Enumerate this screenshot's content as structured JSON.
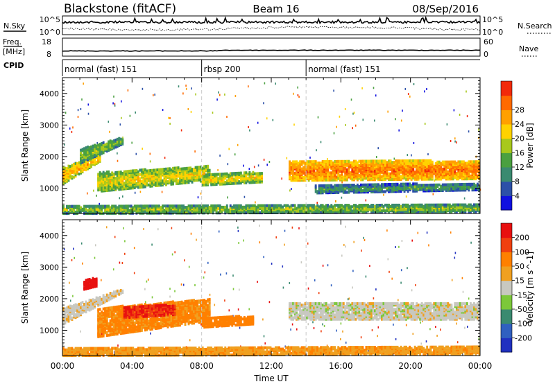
{
  "header": {
    "station": "Blackstone (fitACF)",
    "beam": "Beam 16",
    "date": "08/Sep/2016"
  },
  "top_panels": {
    "nsky_label": "N.Sky",
    "nsearch_label": "N.Search",
    "nsky_ticks": [
      "10^5",
      "10^0"
    ],
    "nsearch_ticks": [
      "10^5",
      "10^0"
    ],
    "freq_label_1": "Freq.",
    "freq_label_2": "[MHz]",
    "freq_ticks": [
      "18",
      "8"
    ],
    "nave_label": "Nave",
    "nave_ticks": [
      "60",
      "0"
    ],
    "cpid_label": "CPID",
    "cpid_segments": [
      {
        "label": "normal (fast) 151",
        "start_h": 0,
        "end_h": 8
      },
      {
        "label": "rbsp 200",
        "start_h": 8,
        "end_h": 14
      },
      {
        "label": "normal (fast) 151",
        "start_h": 14,
        "end_h": 24
      }
    ]
  },
  "chart_data": [
    {
      "type": "heatmap",
      "title": "",
      "xlabel": "Time UT",
      "ylabel": "Slant Range [km]",
      "xlim": [
        0,
        24
      ],
      "ylim": [
        200,
        4500
      ],
      "x_ticks": [
        "00:00",
        "04:00",
        "08:00",
        "12:00",
        "16:00",
        "20:00",
        "00:00"
      ],
      "y_ticks": [
        "1000",
        "2000",
        "3000",
        "4000"
      ],
      "colorbar": {
        "label": "Power [dB]",
        "ticks": [
          "4",
          "8",
          "12",
          "16",
          "20",
          "24",
          "28"
        ],
        "range": [
          0,
          32
        ],
        "colors": [
          "#1010e0",
          "#2c50a8",
          "#3a8a70",
          "#4aa040",
          "#a8c81c",
          "#ffd200",
          "#ffa000",
          "#ff6a00",
          "#f22a0a"
        ]
      },
      "features": [
        {
          "t0": 0.0,
          "t1": 2.2,
          "r0": 1150,
          "r1": 1650,
          "drift_to": 1850,
          "level": 5
        },
        {
          "t0": 1.0,
          "t1": 3.5,
          "r0": 1800,
          "r1": 2250,
          "drift_to": 2400,
          "level": 3
        },
        {
          "t0": 2.0,
          "t1": 8.5,
          "r0": 900,
          "r1": 1500,
          "drift_to": 1250,
          "level": 4
        },
        {
          "t0": 8.0,
          "t1": 11.5,
          "r0": 1100,
          "r1": 1450,
          "drift_to": 1200,
          "level": 4
        },
        {
          "t0": 13.0,
          "t1": 24.0,
          "r0": 1250,
          "r1": 1850,
          "drift_to": 1300,
          "level": 6
        },
        {
          "t0": 14.5,
          "t1": 24.0,
          "r0": 850,
          "r1": 1100,
          "drift_to": 950,
          "level": 2
        },
        {
          "t0": 0.0,
          "t1": 24.0,
          "r0": 200,
          "r1": 450,
          "drift_to": 250,
          "level": 3
        }
      ]
    },
    {
      "type": "heatmap",
      "title": "",
      "xlabel": "Time UT",
      "ylabel": "Slant Range [km]",
      "xlim": [
        0,
        24
      ],
      "ylim": [
        200,
        4500
      ],
      "x_ticks": [
        "00:00",
        "04:00",
        "08:00",
        "12:00",
        "16:00",
        "20:00",
        "00:00"
      ],
      "y_ticks": [
        "1000",
        "2000",
        "3000",
        "4000"
      ],
      "colorbar": {
        "label": "Velocity [m s^-1]",
        "ticks": [
          "200",
          "100",
          "50",
          "15",
          "-15",
          "-50",
          "-100",
          "-200"
        ],
        "range": [
          -250,
          250
        ],
        "colors": [
          "#2030c0",
          "#3060c0",
          "#3a8a70",
          "#7cc83a",
          "#c8c8c0",
          "#f0a020",
          "#ff8000",
          "#f04010",
          "#e81010"
        ]
      },
      "features": [
        {
          "t0": 0.0,
          "t1": 3.5,
          "r0": 1200,
          "r1": 1700,
          "drift_to": 2200,
          "vel": -5
        },
        {
          "t0": 1.2,
          "t1": 2.0,
          "r0": 2300,
          "r1": 2600,
          "drift_to": 2400,
          "vel": -220
        },
        {
          "t0": 2.0,
          "t1": 8.5,
          "r0": 800,
          "r1": 1700,
          "drift_to": 1300,
          "vel": -60
        },
        {
          "t0": 3.5,
          "t1": 6.5,
          "r0": 1400,
          "r1": 1750,
          "drift_to": 1500,
          "vel": -200
        },
        {
          "t0": 8.0,
          "t1": 11.0,
          "r0": 1100,
          "r1": 1400,
          "drift_to": 1200,
          "vel": -70
        },
        {
          "t0": 13.0,
          "t1": 24.0,
          "r0": 1350,
          "r1": 1850,
          "drift_to": 1350,
          "vel": 0
        },
        {
          "t0": 0.0,
          "t1": 24.0,
          "r0": 200,
          "r1": 450,
          "drift_to": 250,
          "vel": -40
        }
      ]
    }
  ]
}
